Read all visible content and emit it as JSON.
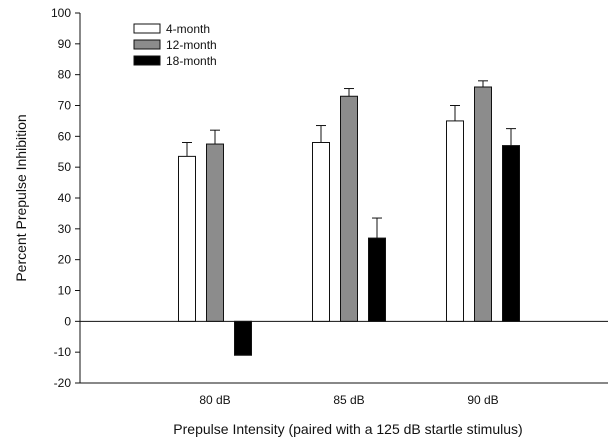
{
  "chart_data": {
    "type": "bar",
    "categories": [
      "80 dB",
      "85 dB",
      "90 dB"
    ],
    "series": [
      {
        "name": "4-month",
        "values": [
          53.5,
          58,
          65
        ],
        "errors": [
          4.5,
          5.5,
          5
        ],
        "color": "#ffffff"
      },
      {
        "name": "12-month",
        "values": [
          57.5,
          73,
          76
        ],
        "errors": [
          4.5,
          2.5,
          2
        ],
        "color": "#8c8c8c"
      },
      {
        "name": "18-month",
        "values": [
          -11,
          27,
          57
        ],
        "errors": [
          0,
          6.5,
          5.5
        ],
        "color": "#000000"
      }
    ],
    "xlabel": "Prepulse Intensity (paired with a 125 dB startle stimulus)",
    "ylabel": "Percent Prepulse Inhibition",
    "ylim": [
      -20,
      100
    ],
    "yticks": [
      100,
      90,
      80,
      70,
      60,
      50,
      40,
      30,
      20,
      10,
      0,
      -10,
      -20
    ],
    "grid": false,
    "legend_position": "top-left"
  }
}
